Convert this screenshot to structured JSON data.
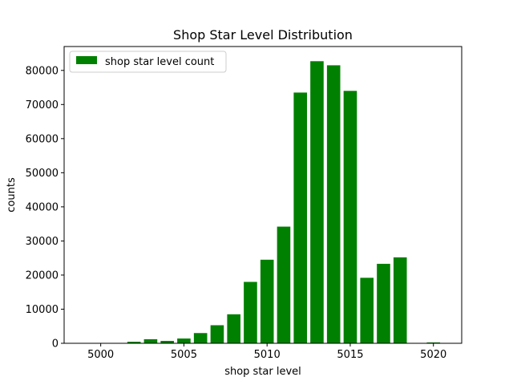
{
  "chart_data": {
    "type": "bar",
    "title": "Shop Star Level Distribution",
    "xlabel": "shop star level",
    "ylabel": "counts",
    "x": [
      4999,
      5000,
      5001,
      5002,
      5003,
      5004,
      5005,
      5006,
      5007,
      5008,
      5009,
      5010,
      5011,
      5012,
      5013,
      5014,
      5015,
      5016,
      5017,
      5018,
      5019,
      5020
    ],
    "values": [
      40,
      50,
      100,
      450,
      1200,
      700,
      1400,
      3000,
      5300,
      8500,
      18000,
      24500,
      34200,
      73500,
      82700,
      81500,
      74000,
      19200,
      23300,
      25200,
      60,
      250
    ],
    "xlim": [
      4997.8,
      5021.7
    ],
    "ylim": [
      0,
      87000
    ],
    "xticks": [
      5000,
      5005,
      5010,
      5015,
      5020
    ],
    "yticks": [
      0,
      10000,
      20000,
      30000,
      40000,
      50000,
      60000,
      70000,
      80000
    ],
    "legend": {
      "label": "shop star level count",
      "placement": "top-left"
    },
    "bar_color": "#008000",
    "grid": false
  }
}
